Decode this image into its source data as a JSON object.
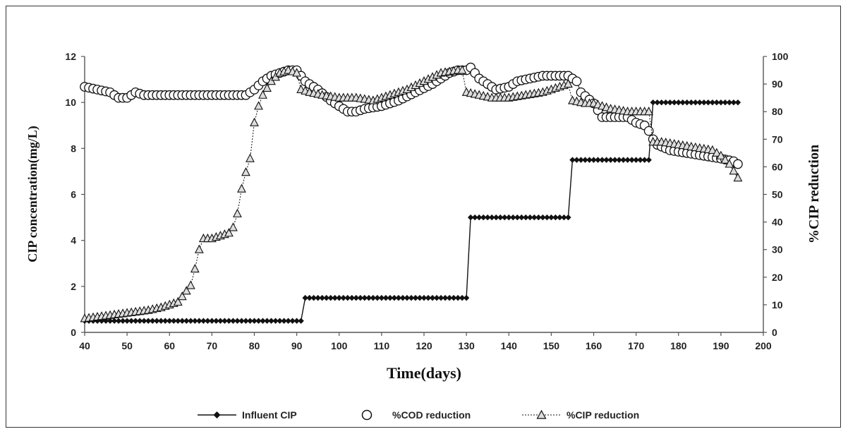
{
  "chart_data": {
    "type": "line",
    "xlabel": "Time(days)",
    "ylabel": "CIP concentration(mg/L)",
    "y2label": "%CIP reduction",
    "xlim": [
      40,
      200
    ],
    "ylim": [
      0,
      12
    ],
    "y2lim": [
      0,
      100
    ],
    "x_ticks": [
      40,
      50,
      60,
      70,
      80,
      90,
      100,
      110,
      120,
      130,
      140,
      150,
      160,
      170,
      180,
      190,
      200
    ],
    "y_ticks": [
      0,
      2,
      4,
      6,
      8,
      10,
      12
    ],
    "y2_ticks": [
      0,
      10,
      20,
      30,
      40,
      50,
      60,
      70,
      80,
      90,
      100
    ],
    "grid": false,
    "legend_position": "bottom",
    "series": [
      {
        "name": "Influent CIP",
        "axis": "left",
        "marker": "diamond",
        "color": "#111111",
        "points": [
          [
            40,
            0.5
          ],
          [
            50,
            0.5
          ],
          [
            60,
            0.5
          ],
          [
            70,
            0.5
          ],
          [
            80,
            0.5
          ],
          [
            90,
            0.5
          ],
          [
            91,
            0.5
          ],
          [
            92,
            1.5
          ],
          [
            100,
            1.5
          ],
          [
            110,
            1.5
          ],
          [
            120,
            1.5
          ],
          [
            129,
            1.5
          ],
          [
            130,
            1.5
          ],
          [
            131,
            5
          ],
          [
            140,
            5
          ],
          [
            150,
            5
          ],
          [
            154,
            5
          ],
          [
            155,
            7.5
          ],
          [
            160,
            7.5
          ],
          [
            170,
            7.5
          ],
          [
            173,
            7.5
          ],
          [
            174,
            10
          ],
          [
            180,
            10
          ],
          [
            190,
            10
          ],
          [
            194,
            10
          ]
        ]
      },
      {
        "name": "%COD reduction",
        "axis": "right",
        "marker": "circle",
        "color": "#111111",
        "points": [
          [
            40,
            89
          ],
          [
            43,
            88
          ],
          [
            46,
            87
          ],
          [
            48,
            85
          ],
          [
            50,
            85
          ],
          [
            52,
            87
          ],
          [
            54,
            86
          ],
          [
            56,
            86
          ],
          [
            60,
            86
          ],
          [
            65,
            86
          ],
          [
            70,
            86
          ],
          [
            75,
            86
          ],
          [
            78,
            86
          ],
          [
            80,
            88
          ],
          [
            82,
            91
          ],
          [
            84,
            93
          ],
          [
            86,
            94
          ],
          [
            88,
            95
          ],
          [
            90,
            95
          ],
          [
            91,
            93
          ],
          [
            92,
            91
          ],
          [
            95,
            88
          ],
          [
            98,
            84
          ],
          [
            100,
            82
          ],
          [
            102,
            80
          ],
          [
            104,
            80
          ],
          [
            106,
            81
          ],
          [
            110,
            82
          ],
          [
            114,
            84
          ],
          [
            118,
            87
          ],
          [
            122,
            90
          ],
          [
            126,
            94
          ],
          [
            128,
            95
          ],
          [
            130,
            95
          ],
          [
            131,
            96
          ],
          [
            133,
            92
          ],
          [
            135,
            90
          ],
          [
            137,
            88
          ],
          [
            140,
            89
          ],
          [
            142,
            91
          ],
          [
            145,
            92
          ],
          [
            148,
            93
          ],
          [
            150,
            93
          ],
          [
            152,
            93
          ],
          [
            154,
            93
          ],
          [
            156,
            91
          ],
          [
            157,
            87
          ],
          [
            160,
            83
          ],
          [
            162,
            78
          ],
          [
            164,
            78
          ],
          [
            166,
            78
          ],
          [
            168,
            78
          ],
          [
            170,
            76
          ],
          [
            172,
            75
          ],
          [
            173,
            73
          ],
          [
            174,
            70
          ],
          [
            175,
            68
          ],
          [
            178,
            66
          ],
          [
            182,
            65
          ],
          [
            186,
            64
          ],
          [
            190,
            63
          ],
          [
            193,
            62
          ],
          [
            194,
            61
          ]
        ]
      },
      {
        "name": "%CIP reduction",
        "axis": "right",
        "marker": "triangle",
        "color": "#111111",
        "points": [
          [
            40,
            5
          ],
          [
            45,
            6
          ],
          [
            50,
            7
          ],
          [
            55,
            8
          ],
          [
            58,
            9
          ],
          [
            60,
            10
          ],
          [
            62,
            11
          ],
          [
            63,
            13
          ],
          [
            64,
            15
          ],
          [
            65,
            17
          ],
          [
            66,
            23
          ],
          [
            67,
            30
          ],
          [
            68,
            34
          ],
          [
            70,
            34
          ],
          [
            72,
            35
          ],
          [
            74,
            36
          ],
          [
            75,
            38
          ],
          [
            76,
            43
          ],
          [
            77,
            52
          ],
          [
            78,
            58
          ],
          [
            79,
            63
          ],
          [
            80,
            76
          ],
          [
            81,
            82
          ],
          [
            82,
            86
          ],
          [
            84,
            91
          ],
          [
            86,
            94
          ],
          [
            88,
            95
          ],
          [
            90,
            94
          ],
          [
            91,
            88
          ],
          [
            93,
            87
          ],
          [
            96,
            86
          ],
          [
            100,
            85
          ],
          [
            104,
            85
          ],
          [
            108,
            84
          ],
          [
            112,
            86
          ],
          [
            116,
            88
          ],
          [
            120,
            91
          ],
          [
            124,
            94
          ],
          [
            128,
            95
          ],
          [
            129,
            95
          ],
          [
            130,
            87
          ],
          [
            133,
            86
          ],
          [
            136,
            85
          ],
          [
            140,
            85
          ],
          [
            144,
            86
          ],
          [
            148,
            87
          ],
          [
            150,
            88
          ],
          [
            154,
            90
          ],
          [
            155,
            84
          ],
          [
            158,
            83
          ],
          [
            160,
            83
          ],
          [
            164,
            81
          ],
          [
            168,
            80
          ],
          [
            172,
            80
          ],
          [
            173,
            80
          ],
          [
            174,
            69
          ],
          [
            176,
            69
          ],
          [
            180,
            68
          ],
          [
            184,
            67
          ],
          [
            188,
            66
          ],
          [
            190,
            64
          ],
          [
            192,
            61
          ],
          [
            194,
            56
          ]
        ]
      }
    ]
  }
}
